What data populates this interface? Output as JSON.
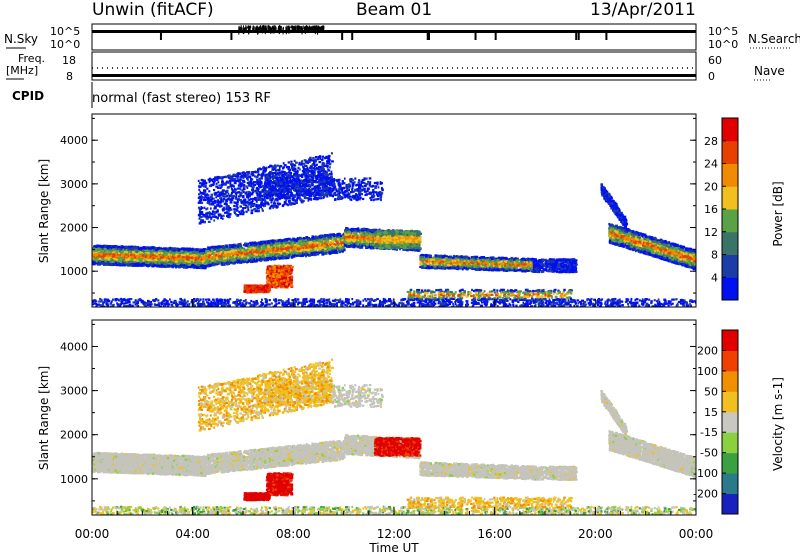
{
  "header": {
    "station": "Unwin (fitACF)",
    "beam": "Beam 01",
    "date": "13/Apr/2011"
  },
  "ctrl_panels": {
    "nsky": {
      "label": "N.Sky",
      "ticks": [
        "10^5",
        "10^0"
      ]
    },
    "nsearch": {
      "label": "N.Search",
      "ticks": [
        "10^5",
        "10^0"
      ]
    },
    "freq": {
      "label_line1": "Freq.",
      "label_line2": "[MHz]",
      "ticks": [
        "18",
        "8"
      ]
    },
    "nave": {
      "label": "Nave",
      "ticks": [
        "60",
        "0"
      ]
    },
    "cpid": {
      "label": "CPID",
      "text": "normal (fast stereo) 153 RF"
    }
  },
  "chart_data": [
    {
      "type": "heatmap",
      "name": "power",
      "ylabel": "Slant Range [km]",
      "ylim": [
        180,
        4600
      ],
      "yticks": [
        "1000",
        "2000",
        "3000",
        "4000"
      ],
      "xlim": [
        0,
        24
      ],
      "colorbar": {
        "label": "Power [dB]",
        "ticks": [
          "4",
          "8",
          "12",
          "16",
          "20",
          "24",
          "28"
        ],
        "colors": [
          "#0010f0",
          "#1c3ca8",
          "#3a7468",
          "#5aa246",
          "#f0c020",
          "#f08a00",
          "#e84000",
          "#e00000"
        ]
      }
    },
    {
      "type": "heatmap",
      "name": "velocity",
      "ylabel": "Slant Range [km]",
      "ylim": [
        180,
        4600
      ],
      "yticks": [
        "1000",
        "2000",
        "3000",
        "4000"
      ],
      "xlim": [
        0,
        24
      ],
      "xticks": [
        "00:00",
        "04:00",
        "08:00",
        "12:00",
        "16:00",
        "20:00",
        "00:00"
      ],
      "xlabel": "Time UT",
      "colorbar": {
        "label": "Velocity [m s-1]",
        "ticks": [
          "200",
          "100",
          "50",
          "15",
          "-15",
          "-50",
          "-100",
          "-200"
        ],
        "colors": [
          "#1820c0",
          "#2a7a8a",
          "#3aa040",
          "#8ad040",
          "#c8c8c0",
          "#f0c020",
          "#f09000",
          "#f04000",
          "#e00000"
        ]
      }
    }
  ],
  "colors": {
    "ground_scatter": "#c4c4bc",
    "frame": "#000000"
  }
}
